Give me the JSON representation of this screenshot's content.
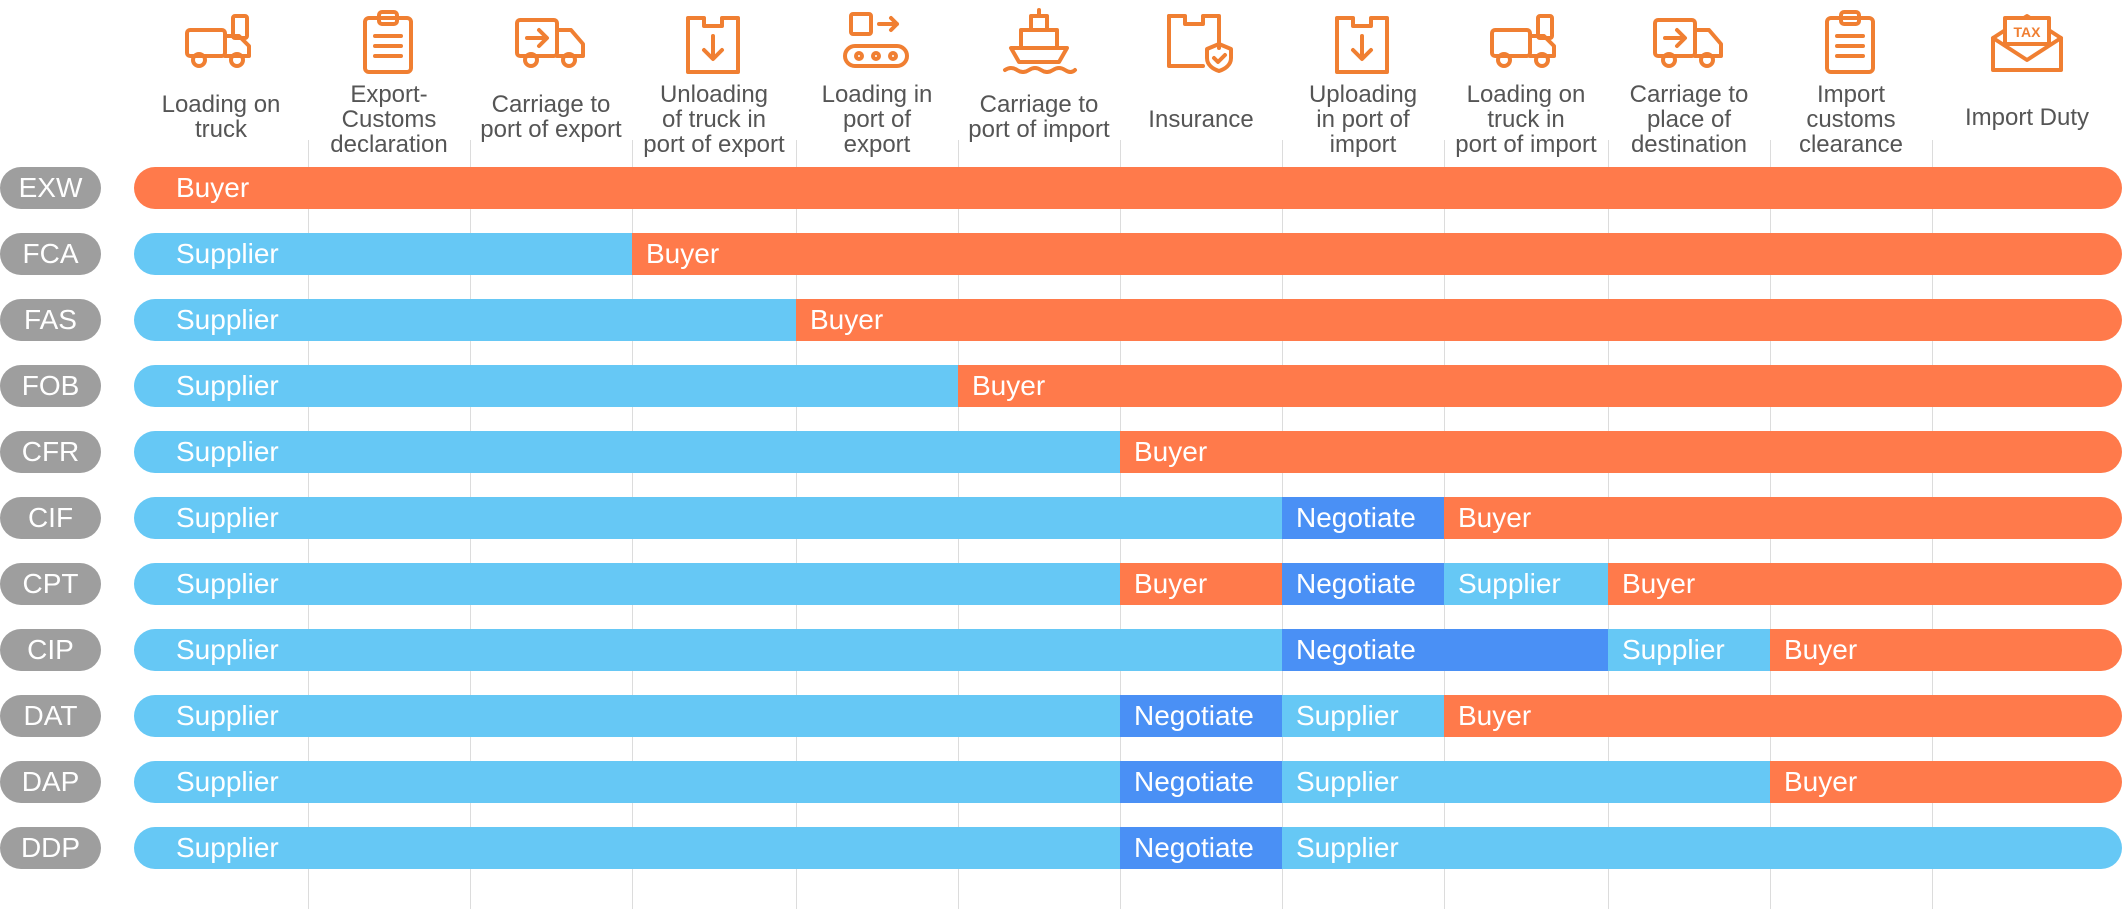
{
  "colors": {
    "Supplier": "#66c8f5",
    "Buyer": "#ff7a4b",
    "Negotiate": "#4a90f5",
    "icon": "#f07f32",
    "badge": "#9e9e9e"
  },
  "columns": [
    {
      "label": "Loading on\ntruck",
      "icon": "truck-icon"
    },
    {
      "label": "Export-\nCustoms\ndeclaration",
      "icon": "clipboard-icon"
    },
    {
      "label": "Carriage to\nport of export",
      "icon": "delivery-truck-icon"
    },
    {
      "label": "Unloading\nof truck in\nport of export",
      "icon": "box-down-icon"
    },
    {
      "label": "Loading in\nport of\nexport",
      "icon": "conveyor-icon"
    },
    {
      "label": "Carriage to\nport of import",
      "icon": "ship-icon"
    },
    {
      "label": "Insurance",
      "icon": "insured-box-icon"
    },
    {
      "label": "Uploading\nin port of\nimport",
      "icon": "box-down-icon"
    },
    {
      "label": "Loading on\ntruck in\nport of import",
      "icon": "truck-icon"
    },
    {
      "label": "Carriage to\nplace of\ndestination",
      "icon": "delivery-truck-icon"
    },
    {
      "label": "Import\ncustoms\nclearance",
      "icon": "clipboard-icon"
    },
    {
      "label": "Import Duty",
      "icon": "tax-envelope-icon"
    }
  ],
  "tax_label": "TAX",
  "rows": [
    {
      "term": "EXW",
      "segments": [
        {
          "party": "Buyer",
          "start": 0,
          "end": 12
        }
      ]
    },
    {
      "term": "FCA",
      "segments": [
        {
          "party": "Supplier",
          "start": 0,
          "end": 3
        },
        {
          "party": "Buyer",
          "start": 3,
          "end": 12
        }
      ]
    },
    {
      "term": "FAS",
      "segments": [
        {
          "party": "Supplier",
          "start": 0,
          "end": 4
        },
        {
          "party": "Buyer",
          "start": 4,
          "end": 12
        }
      ]
    },
    {
      "term": "FOB",
      "segments": [
        {
          "party": "Supplier",
          "start": 0,
          "end": 5
        },
        {
          "party": "Buyer",
          "start": 5,
          "end": 12
        }
      ]
    },
    {
      "term": "CFR",
      "segments": [
        {
          "party": "Supplier",
          "start": 0,
          "end": 6
        },
        {
          "party": "Buyer",
          "start": 6,
          "end": 12
        }
      ]
    },
    {
      "term": "CIF",
      "segments": [
        {
          "party": "Supplier",
          "start": 0,
          "end": 7
        },
        {
          "party": "Negotiate",
          "start": 7,
          "end": 8
        },
        {
          "party": "Buyer",
          "start": 8,
          "end": 12
        }
      ]
    },
    {
      "term": "CPT",
      "segments": [
        {
          "party": "Supplier",
          "start": 0,
          "end": 6
        },
        {
          "party": "Buyer",
          "start": 6,
          "end": 7
        },
        {
          "party": "Negotiate",
          "start": 7,
          "end": 8
        },
        {
          "party": "Supplier",
          "start": 8,
          "end": 9
        },
        {
          "party": "Buyer",
          "start": 9,
          "end": 12
        }
      ]
    },
    {
      "term": "CIP",
      "segments": [
        {
          "party": "Supplier",
          "start": 0,
          "end": 7
        },
        {
          "party": "Negotiate",
          "start": 7,
          "end": 9
        },
        {
          "party": "Supplier",
          "start": 9,
          "end": 10
        },
        {
          "party": "Buyer",
          "start": 10,
          "end": 12
        }
      ]
    },
    {
      "term": "DAT",
      "segments": [
        {
          "party": "Supplier",
          "start": 0,
          "end": 6
        },
        {
          "party": "Negotiate",
          "start": 6,
          "end": 7
        },
        {
          "party": "Supplier",
          "start": 7,
          "end": 8
        },
        {
          "party": "Buyer",
          "start": 8,
          "end": 12
        }
      ]
    },
    {
      "term": "DAP",
      "segments": [
        {
          "party": "Supplier",
          "start": 0,
          "end": 6
        },
        {
          "party": "Negotiate",
          "start": 6,
          "end": 7
        },
        {
          "party": "Supplier",
          "start": 7,
          "end": 10
        },
        {
          "party": "Buyer",
          "start": 10,
          "end": 12
        }
      ]
    },
    {
      "term": "DDP",
      "segments": [
        {
          "party": "Supplier",
          "start": 0,
          "end": 6
        },
        {
          "party": "Negotiate",
          "start": 6,
          "end": 7
        },
        {
          "party": "Supplier",
          "start": 7,
          "end": 12
        }
      ]
    }
  ]
}
